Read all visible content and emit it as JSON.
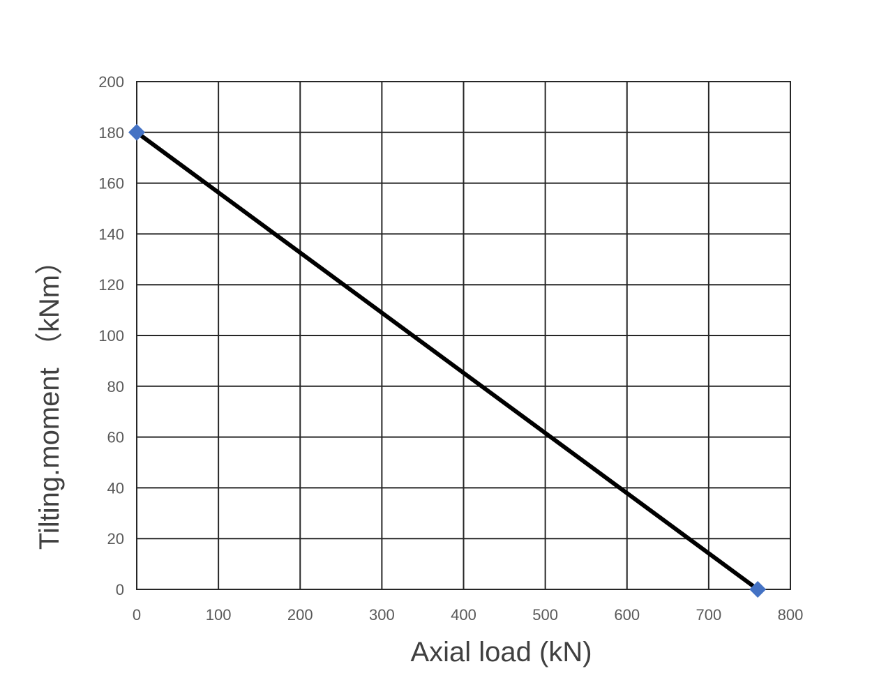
{
  "chart_data": {
    "type": "line",
    "title": "",
    "xlabel": "Axial load (kN)",
    "ylabel": "Tilting.moment （kNm）",
    "xlim": [
      0,
      800
    ],
    "ylim": [
      0,
      200
    ],
    "x_ticks": [
      0,
      100,
      200,
      300,
      400,
      500,
      600,
      700,
      800
    ],
    "y_ticks": [
      0,
      20,
      40,
      60,
      80,
      100,
      120,
      140,
      160,
      180,
      200
    ],
    "grid": true,
    "legend": "none",
    "series": [
      {
        "x": [
          0,
          760
        ],
        "values": [
          180,
          0
        ],
        "line_color": "#000000",
        "marker": "diamond",
        "marker_color": "#4472C4"
      }
    ]
  }
}
